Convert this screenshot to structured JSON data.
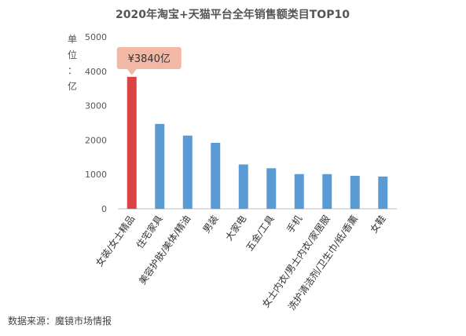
{
  "chart_data": {
    "type": "bar",
    "title": "2020年淘宝+天猫平台全年销售额类目TOP10",
    "unit_label": "单位：亿",
    "categories": [
      "女装/女士精品",
      "住宅家具",
      "美容护肤/美体/精油",
      "男装",
      "大家电",
      "五金/工具",
      "手机",
      "女士内衣/男士内衣/家居服",
      "洗护清洁剂/卫生巾/纸/香薰",
      "女鞋"
    ],
    "values": [
      3840,
      2470,
      2130,
      1920,
      1290,
      1180,
      1010,
      1010,
      960,
      940
    ],
    "ylim": [
      0,
      5000
    ],
    "yticks": [
      0,
      1000,
      2000,
      3000,
      4000,
      5000
    ],
    "grid": false,
    "highlight_index": 0,
    "annotation": "¥3840亿",
    "colors": {
      "highlight": "#d94545",
      "bar": "#5b9bd5",
      "callout": "#f2b8a6",
      "axis": "#bfbfbf"
    }
  },
  "footer": {
    "source": "数据来源：魔镜市场情报"
  }
}
